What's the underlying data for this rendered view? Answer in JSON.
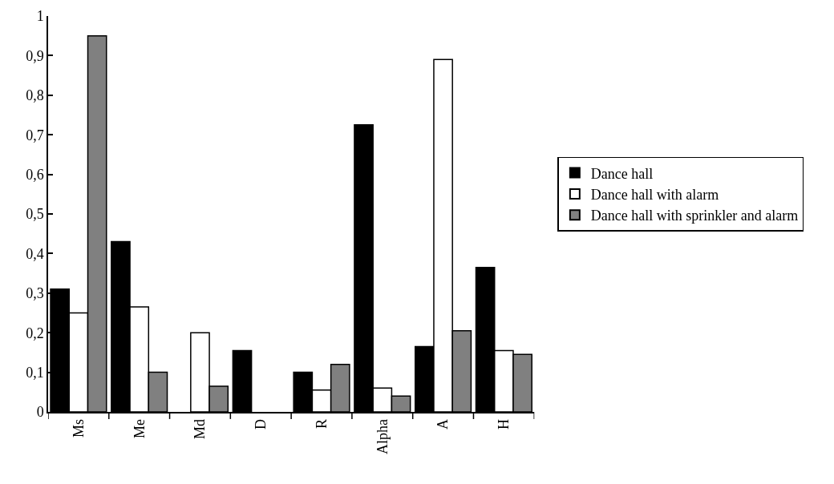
{
  "chart_data": {
    "type": "bar",
    "categories": [
      "Ms",
      "Me",
      "Md",
      "D",
      "R",
      "Alpha",
      "A",
      "H"
    ],
    "series": [
      {
        "name": "Dance hall",
        "color": "#000000",
        "values": [
          0.31,
          0.43,
          null,
          0.155,
          0.1,
          0.725,
          0.165,
          0.365
        ]
      },
      {
        "name": "Dance hall with alarm",
        "color": "#ffffff",
        "values": [
          0.25,
          0.265,
          0.2,
          null,
          0.055,
          0.06,
          0.89,
          0.155
        ]
      },
      {
        "name": "Dance hall with sprinkler and alarm",
        "color": "#808080",
        "values": [
          0.95,
          0.1,
          0.065,
          null,
          0.12,
          0.04,
          0.205,
          0.145
        ]
      }
    ],
    "ylim": [
      0,
      1
    ],
    "yticks": [
      0,
      {
        "value": 0.1,
        "label": "0,1"
      },
      {
        "value": 0.2,
        "label": "0,2"
      },
      {
        "value": 0.3,
        "label": "0,3"
      },
      {
        "value": 0.4,
        "label": "0,4"
      },
      {
        "value": 0.5,
        "label": "0,5"
      },
      {
        "value": 0.6,
        "label": "0,6"
      },
      {
        "value": 0.7,
        "label": "0,7"
      },
      {
        "value": 0.8,
        "label": "0,8"
      },
      {
        "value": 0.9,
        "label": "0,9"
      },
      1
    ],
    "legend": "right"
  }
}
